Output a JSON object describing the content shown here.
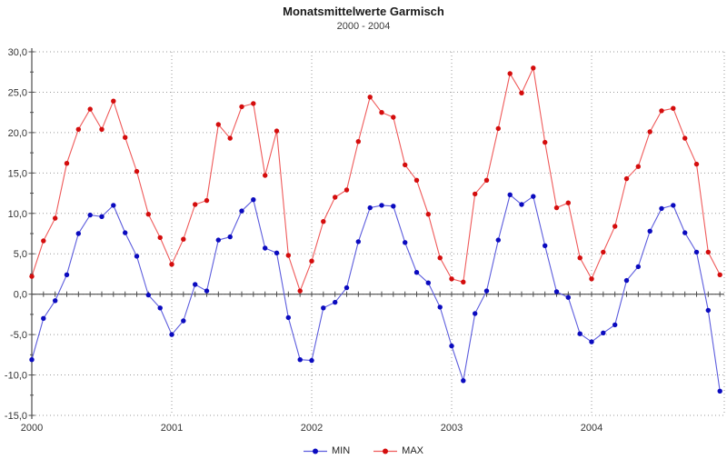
{
  "header": {
    "title": "Monatsmittelwerte Garmisch",
    "subtitle": "2000 - 2004"
  },
  "legend": {
    "items": [
      {
        "label": "MIN",
        "line_color": "#5c5cdd",
        "point_color": "#0b0bbf"
      },
      {
        "label": "MAX",
        "line_color": "#ef5a5a",
        "point_color": "#d40d0d"
      }
    ]
  },
  "chart_data": {
    "type": "line",
    "title": "Monatsmittelwerte Garmisch",
    "subtitle": "2000 - 2004",
    "xlabel": "",
    "ylabel": "",
    "ylim": [
      -15,
      30
    ],
    "grid": true,
    "legend_position": "bottom",
    "x_unit": "month",
    "x_range_years": [
      2000,
      2004
    ],
    "y_ticks": [
      {
        "value": 30,
        "label": "30,0"
      },
      {
        "value": 25,
        "label": "25,0"
      },
      {
        "value": 20,
        "label": "20,0"
      },
      {
        "value": 15,
        "label": "15,0"
      },
      {
        "value": 10,
        "label": "10,0"
      },
      {
        "value": 5,
        "label": "5,0"
      },
      {
        "value": 0,
        "label": "0,0"
      },
      {
        "value": -5,
        "label": "-5,0"
      },
      {
        "value": -10,
        "label": "-10,0"
      },
      {
        "value": -15,
        "label": "-15,0"
      }
    ],
    "x_ticks": [
      {
        "month_index": 0,
        "label": "2000"
      },
      {
        "month_index": 12,
        "label": "2001"
      },
      {
        "month_index": 24,
        "label": "2002"
      },
      {
        "month_index": 36,
        "label": "2003"
      },
      {
        "month_index": 48,
        "label": "2004"
      }
    ],
    "series": [
      {
        "name": "MIN",
        "line_color": "#5c5cdd",
        "point_color": "#0b0bbf",
        "values": [
          -8.1,
          -3.0,
          -0.8,
          2.4,
          7.5,
          9.8,
          9.6,
          11.0,
          7.6,
          4.7,
          -0.1,
          -1.7,
          -5.0,
          -3.3,
          1.2,
          0.4,
          6.7,
          7.1,
          10.3,
          11.7,
          5.7,
          5.1,
          -2.9,
          -8.1,
          -8.2,
          -1.7,
          -1.0,
          0.8,
          6.5,
          10.7,
          11.0,
          10.9,
          6.4,
          2.7,
          1.4,
          -1.6,
          -6.4,
          -10.7,
          -2.4,
          0.4,
          6.7,
          12.3,
          11.1,
          12.1,
          6.0,
          0.3,
          -0.4,
          -4.9,
          -5.9,
          -4.8,
          -3.8,
          1.7,
          3.4,
          7.8,
          10.6,
          11.0,
          7.6,
          5.2,
          -2.0,
          -12.0
        ]
      },
      {
        "name": "MAX",
        "line_color": "#ef5a5a",
        "point_color": "#d40d0d",
        "values": [
          2.2,
          6.6,
          9.4,
          16.2,
          20.4,
          22.9,
          20.4,
          23.9,
          19.4,
          15.2,
          9.9,
          7.0,
          3.7,
          6.8,
          11.1,
          11.6,
          21.0,
          19.3,
          23.2,
          23.6,
          14.7,
          20.2,
          4.8,
          0.4,
          4.1,
          9.0,
          12.0,
          12.9,
          18.9,
          24.4,
          22.5,
          21.9,
          16.0,
          14.1,
          9.9,
          4.5,
          1.9,
          1.5,
          12.4,
          14.1,
          20.5,
          27.3,
          24.9,
          28.0,
          18.8,
          10.7,
          11.3,
          4.5,
          1.9,
          5.2,
          8.4,
          14.3,
          15.8,
          20.1,
          22.7,
          23.0,
          19.3,
          16.1,
          5.2,
          2.4
        ]
      }
    ],
    "style": {
      "grid_color": "#9a9a9a",
      "axis_color": "#4d4d4d",
      "tick_label_color": "#333333",
      "background": "#ffffff"
    }
  }
}
